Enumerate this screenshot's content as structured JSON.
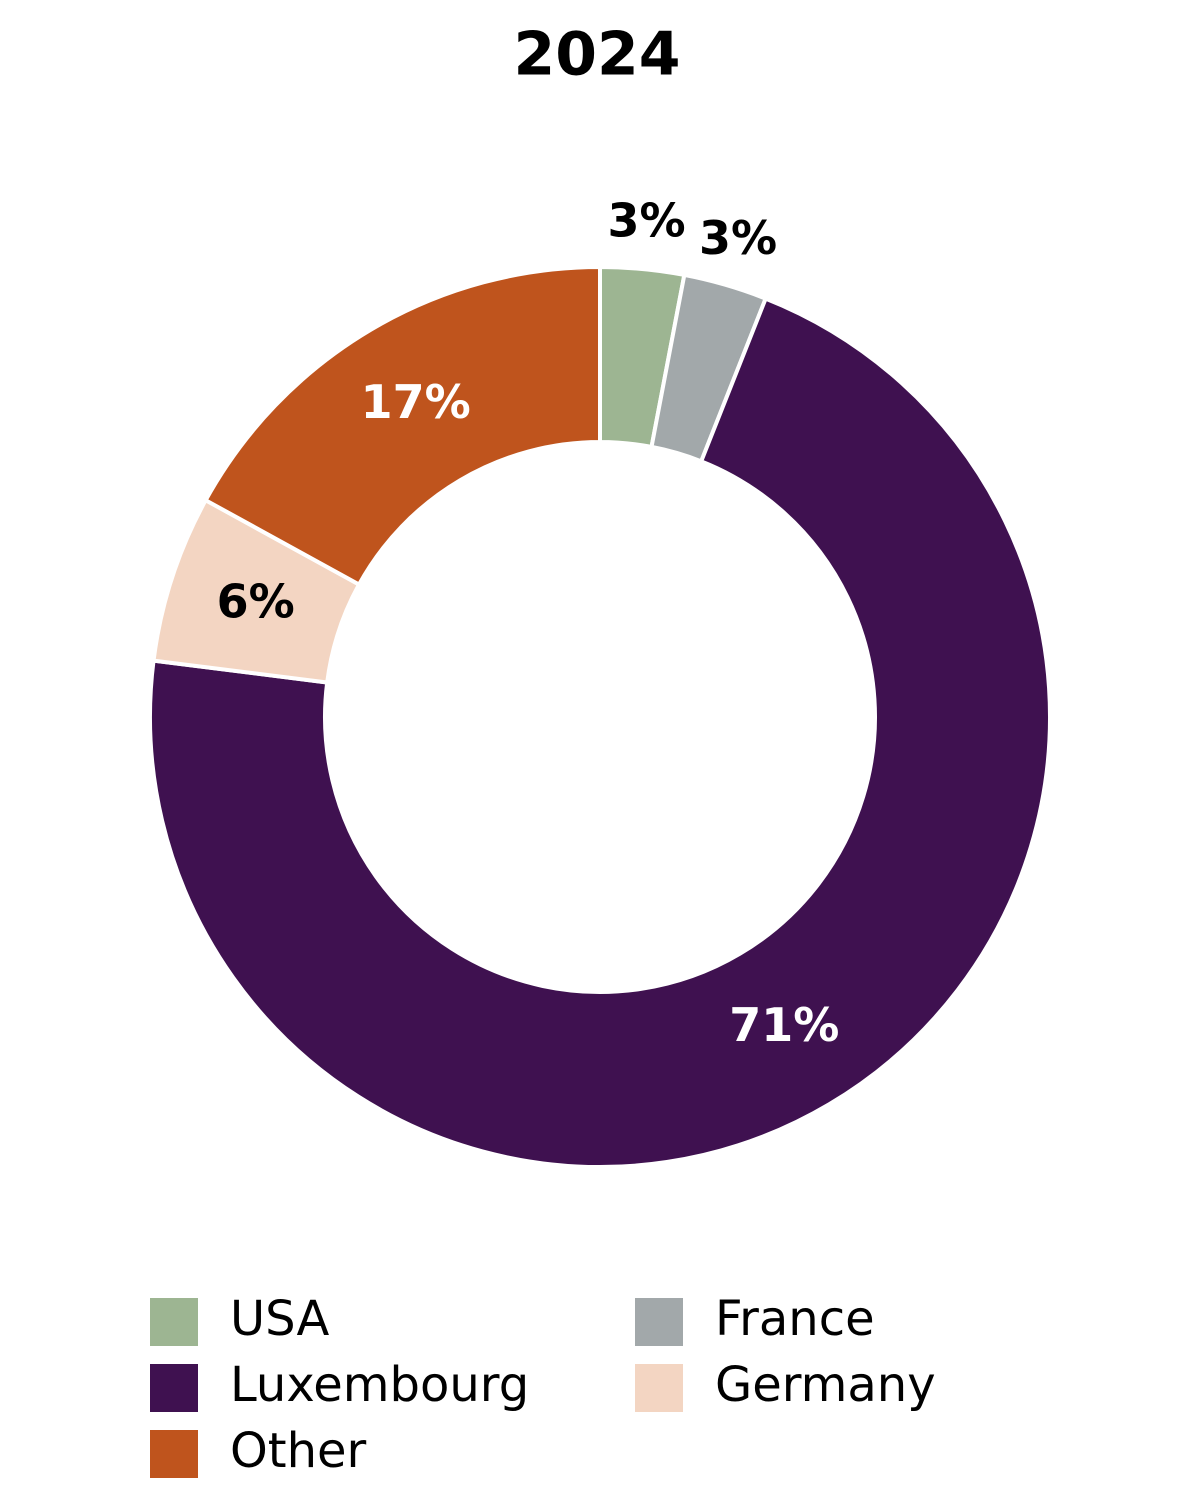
{
  "chart_data": {
    "type": "donut",
    "title": "2024",
    "categories": [
      "USA",
      "France",
      "Luxembourg",
      "Germany",
      "Other"
    ],
    "values": [
      3,
      3,
      71,
      6,
      17
    ],
    "value_labels": [
      "3%",
      "3%",
      "71%",
      "6%",
      "17%"
    ],
    "colors": [
      "#9db592",
      "#a2a8aa",
      "#3f1150",
      "#f3d5c2",
      "#bf541d"
    ]
  }
}
